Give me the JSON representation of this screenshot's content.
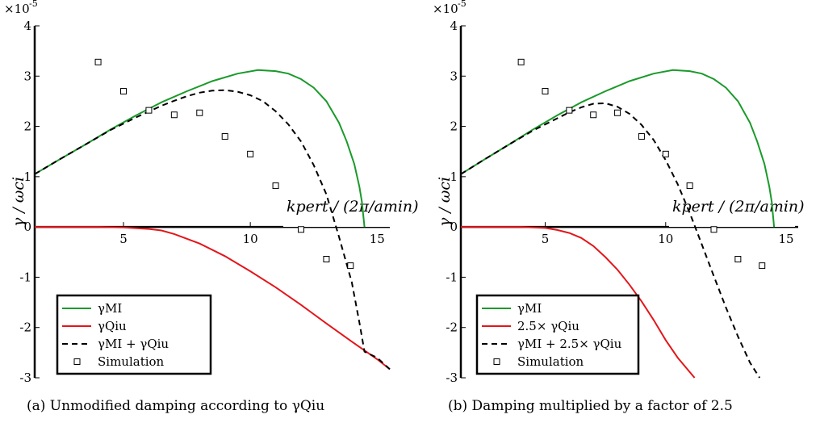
{
  "chart_data": [
    {
      "type": "line",
      "caption": "(a) Unmodified damping according to γQiu",
      "exponent_label": "×10",
      "exponent_power": "-5",
      "ylabel": "γ / ωci",
      "xlabel": "kpert / (2π/amin)",
      "xlim": [
        1.5,
        15.5
      ],
      "ylim": [
        -3,
        4
      ],
      "xticks": [
        5,
        10,
        15
      ],
      "yticks": [
        4,
        3,
        2,
        1,
        0,
        -1,
        -2,
        -3
      ],
      "xtick_labels": [
        "5",
        "10",
        "15"
      ],
      "ytick_labels": [
        "4",
        "3",
        "2",
        "1",
        "0",
        "-1",
        "-2",
        "-3"
      ],
      "grid": false,
      "legend_position": "bottom-left",
      "series": [
        {
          "name": "γMI",
          "color": "#1a9a2a",
          "style": "solid",
          "x": [
            1.5,
            2.5,
            3.5,
            4.5,
            5.5,
            6.5,
            7.5,
            8.5,
            9.5,
            10.3,
            11,
            11.5,
            12,
            12.5,
            13,
            13.5,
            13.8,
            14.1,
            14.3,
            14.4,
            14.5
          ],
          "y": [
            1.05,
            1.35,
            1.64,
            1.94,
            2.22,
            2.48,
            2.7,
            2.9,
            3.05,
            3.12,
            3.1,
            3.05,
            2.94,
            2.77,
            2.5,
            2.07,
            1.7,
            1.25,
            0.8,
            0.5,
            0.0
          ]
        },
        {
          "name": "γQiu",
          "color": "#e3161b",
          "style": "solid",
          "x": [
            1.5,
            3,
            4,
            5,
            6,
            6.5,
            7,
            8,
            9,
            10,
            11,
            12,
            13,
            14,
            15,
            15.5
          ],
          "y": [
            0,
            0,
            0,
            -0.01,
            -0.04,
            -0.07,
            -0.14,
            -0.33,
            -0.58,
            -0.88,
            -1.2,
            -1.55,
            -1.92,
            -2.28,
            -2.63,
            -2.83
          ]
        },
        {
          "name": "γMI + γQiu",
          "color": "#000000",
          "style": "dashed",
          "x": [
            1.5,
            2.5,
            3.5,
            4.5,
            5.5,
            6.5,
            7,
            7.5,
            8,
            8.5,
            9,
            9.5,
            10,
            10.5,
            11,
            11.5,
            12,
            12.5,
            13,
            13.5,
            14,
            14.3,
            14.5,
            15,
            15.5
          ],
          "y": [
            1.05,
            1.35,
            1.64,
            1.93,
            2.18,
            2.41,
            2.51,
            2.6,
            2.67,
            2.71,
            2.72,
            2.69,
            2.62,
            2.5,
            2.3,
            2.04,
            1.7,
            1.23,
            0.65,
            -0.2,
            -1.1,
            -1.9,
            -2.48,
            -2.6,
            -2.83
          ]
        }
      ],
      "simulation": {
        "name": "Simulation",
        "x": [
          4,
          5,
          6,
          7,
          8,
          9,
          10,
          11,
          12,
          13,
          13.95
        ],
        "y": [
          3.28,
          2.7,
          2.32,
          2.23,
          2.27,
          1.8,
          1.45,
          0.82,
          -0.05,
          -0.64,
          -0.77
        ]
      }
    },
    {
      "type": "line",
      "caption": "(b) Damping multiplied by a factor of 2.5",
      "exponent_label": "×10",
      "exponent_power": "-5",
      "ylabel": "γ / ωci",
      "xlabel": "kpert / (2π/amin)",
      "xlim": [
        1.5,
        15.5
      ],
      "ylim": [
        -3,
        4
      ],
      "xticks": [
        5,
        10,
        15
      ],
      "yticks": [
        4,
        3,
        2,
        1,
        0,
        -1,
        -2,
        -3
      ],
      "xtick_labels": [
        "5",
        "10",
        "15"
      ],
      "ytick_labels": [
        "4",
        "3",
        "2",
        "1",
        "0",
        "-1",
        "-2",
        "-3"
      ],
      "grid": false,
      "legend_position": "bottom-left",
      "series": [
        {
          "name": "γMI",
          "color": "#1a9a2a",
          "style": "solid",
          "x": [
            1.5,
            2.5,
            3.5,
            4.5,
            5.5,
            6.5,
            7.5,
            8.5,
            9.5,
            10.3,
            11,
            11.5,
            12,
            12.5,
            13,
            13.5,
            13.8,
            14.1,
            14.3,
            14.4,
            14.5
          ],
          "y": [
            1.05,
            1.35,
            1.64,
            1.94,
            2.22,
            2.48,
            2.7,
            2.9,
            3.05,
            3.12,
            3.1,
            3.05,
            2.94,
            2.77,
            2.5,
            2.07,
            1.7,
            1.25,
            0.8,
            0.5,
            0.0
          ]
        },
        {
          "name": "2.5× γQiu",
          "color": "#e3161b",
          "style": "solid",
          "x": [
            1.5,
            3,
            4,
            5,
            5.5,
            6,
            6.5,
            7,
            7.5,
            8,
            8.5,
            9,
            9.5,
            10,
            10.5,
            11.2
          ],
          "y": [
            0,
            0,
            0,
            -0.02,
            -0.06,
            -0.12,
            -0.22,
            -0.38,
            -0.6,
            -0.85,
            -1.15,
            -1.48,
            -1.85,
            -2.25,
            -2.6,
            -3.0
          ]
        },
        {
          "name": "γMI + 2.5× γQiu",
          "color": "#000000",
          "style": "dashed",
          "x": [
            1.5,
            2.5,
            3.5,
            4.5,
            5.5,
            6,
            6.5,
            7,
            7.5,
            8,
            8.5,
            9,
            9.5,
            10,
            10.5,
            11,
            11.5,
            12,
            12.5,
            13,
            13.5,
            13.9
          ],
          "y": [
            1.05,
            1.35,
            1.64,
            1.92,
            2.16,
            2.28,
            2.38,
            2.45,
            2.46,
            2.39,
            2.25,
            2.03,
            1.73,
            1.33,
            0.85,
            0.28,
            -0.35,
            -0.98,
            -1.6,
            -2.18,
            -2.7,
            -3.0
          ]
        }
      ],
      "simulation": {
        "name": "Simulation",
        "x": [
          4,
          5,
          6,
          7,
          8,
          9,
          10,
          11,
          12,
          13,
          14
        ],
        "y": [
          3.28,
          2.7,
          2.32,
          2.23,
          2.27,
          1.8,
          1.45,
          0.82,
          -0.05,
          -0.64,
          -0.77
        ]
      }
    }
  ]
}
